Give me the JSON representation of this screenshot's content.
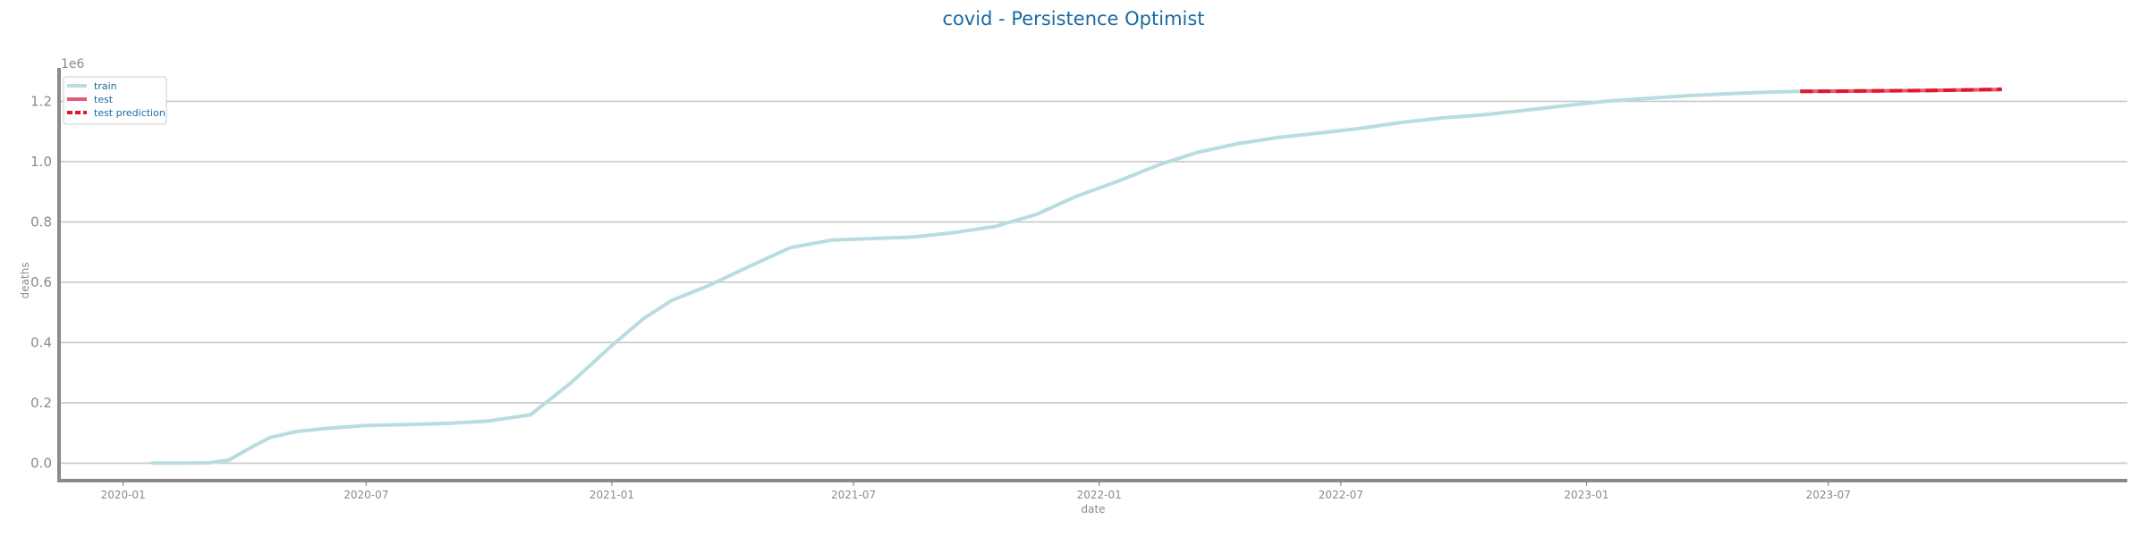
{
  "chart_data": {
    "type": "line",
    "title": "covid - Persistence Optimist",
    "xlabel": "date",
    "ylabel": "deaths",
    "y_offset_label": "1e6",
    "x_axis_type": "date",
    "x_range": [
      "2019-11-14",
      "2024-02-10"
    ],
    "ylim": [
      -0.058,
      1.305
    ],
    "y_scale_multiplier": 1000000,
    "yticks": [
      0.0,
      0.2,
      0.4,
      0.6,
      0.8,
      1.0,
      1.2
    ],
    "ytick_labels": [
      "0.0",
      "0.2",
      "0.4",
      "0.6",
      "0.8",
      "1.0",
      "1.2"
    ],
    "xticks": [
      "2020-01-01",
      "2020-07-01",
      "2021-01-01",
      "2021-07-01",
      "2022-01-01",
      "2022-07-01",
      "2023-01-01",
      "2023-07-01"
    ],
    "xtick_labels": [
      "2020-01",
      "2020-07",
      "2021-01",
      "2021-07",
      "2022-01",
      "2022-07",
      "2023-01",
      "2023-07"
    ],
    "grid": "horizontal",
    "legend_position": "top-left",
    "series": [
      {
        "name": "train",
        "color": "#b8dce0",
        "style": "solid",
        "points": [
          [
            "2020-01-22",
            0.0
          ],
          [
            "2020-02-15",
            0.0
          ],
          [
            "2020-03-05",
            0.001
          ],
          [
            "2020-03-20",
            0.01
          ],
          [
            "2020-04-05",
            0.05
          ],
          [
            "2020-04-20",
            0.085
          ],
          [
            "2020-05-10",
            0.105
          ],
          [
            "2020-06-01",
            0.115
          ],
          [
            "2020-07-01",
            0.125
          ],
          [
            "2020-08-01",
            0.128
          ],
          [
            "2020-09-01",
            0.132
          ],
          [
            "2020-10-01",
            0.14
          ],
          [
            "2020-11-01",
            0.16
          ],
          [
            "2020-12-01",
            0.265
          ],
          [
            "2021-01-01",
            0.39
          ],
          [
            "2021-01-25",
            0.48
          ],
          [
            "2021-02-15",
            0.54
          ],
          [
            "2021-03-15",
            0.59
          ],
          [
            "2021-04-15",
            0.655
          ],
          [
            "2021-05-15",
            0.715
          ],
          [
            "2021-06-15",
            0.74
          ],
          [
            "2021-07-15",
            0.745
          ],
          [
            "2021-08-15",
            0.75
          ],
          [
            "2021-09-15",
            0.765
          ],
          [
            "2021-10-15",
            0.785
          ],
          [
            "2021-11-15",
            0.825
          ],
          [
            "2021-12-15",
            0.885
          ],
          [
            "2022-01-15",
            0.935
          ],
          [
            "2022-02-15",
            0.99
          ],
          [
            "2022-03-15",
            1.03
          ],
          [
            "2022-04-15",
            1.06
          ],
          [
            "2022-05-15",
            1.08
          ],
          [
            "2022-06-15",
            1.095
          ],
          [
            "2022-07-15",
            1.11
          ],
          [
            "2022-08-15",
            1.13
          ],
          [
            "2022-09-15",
            1.145
          ],
          [
            "2022-10-15",
            1.155
          ],
          [
            "2022-11-15",
            1.17
          ],
          [
            "2022-12-15",
            1.185
          ],
          [
            "2023-01-15",
            1.2
          ],
          [
            "2023-02-15",
            1.21
          ],
          [
            "2023-03-15",
            1.218
          ],
          [
            "2023-04-15",
            1.225
          ],
          [
            "2023-05-15",
            1.23
          ],
          [
            "2023-06-10",
            1.233
          ]
        ]
      },
      {
        "name": "test",
        "color": "#e05a7a",
        "style": "solid",
        "points": [
          [
            "2023-06-10",
            1.233
          ],
          [
            "2023-07-15",
            1.234
          ],
          [
            "2023-08-15",
            1.235
          ],
          [
            "2023-09-15",
            1.236
          ],
          [
            "2023-10-15",
            1.238
          ],
          [
            "2023-11-08",
            1.239
          ]
        ]
      },
      {
        "name": "test prediction",
        "color": "#e3172b",
        "style": "dashed",
        "points": [
          [
            "2023-06-10",
            1.233
          ],
          [
            "2023-07-15",
            1.234
          ],
          [
            "2023-08-15",
            1.235
          ],
          [
            "2023-09-15",
            1.236
          ],
          [
            "2023-10-15",
            1.238
          ],
          [
            "2023-11-08",
            1.24
          ]
        ]
      }
    ]
  }
}
